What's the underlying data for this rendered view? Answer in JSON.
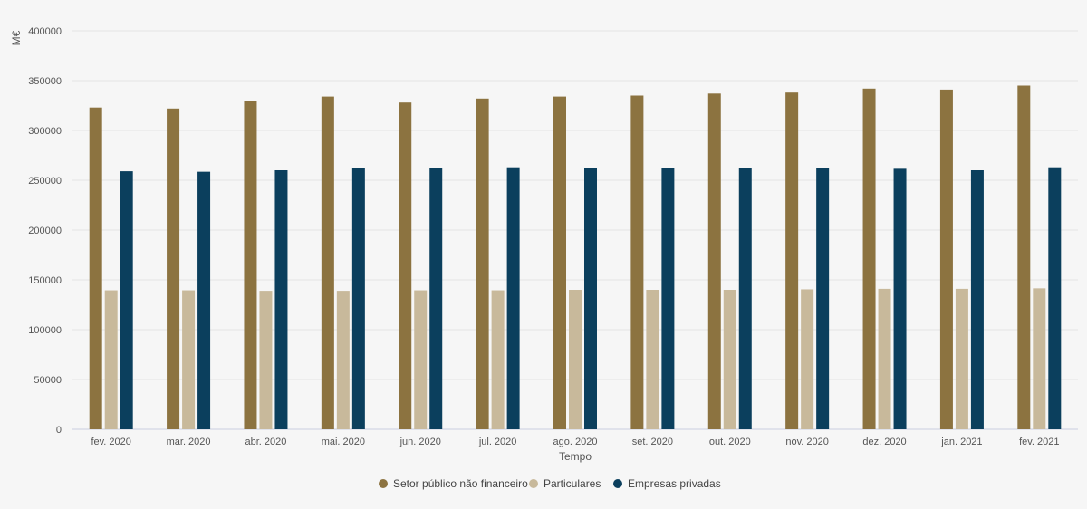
{
  "chart_data": {
    "type": "bar",
    "title": "",
    "xlabel": "Tempo",
    "ylabel": "M€",
    "ylim": [
      0,
      400000
    ],
    "yticks": [
      0,
      50000,
      100000,
      150000,
      200000,
      250000,
      300000,
      350000,
      400000
    ],
    "grid": true,
    "legend_position": "bottom",
    "categories": [
      "fev. 2020",
      "mar. 2020",
      "abr. 2020",
      "mai. 2020",
      "jun. 2020",
      "jul. 2020",
      "ago. 2020",
      "set. 2020",
      "out. 2020",
      "nov. 2020",
      "dez. 2020",
      "jan. 2021",
      "fev. 2021"
    ],
    "series": [
      {
        "name": "Setor público não financeiro",
        "color": "#8c7340",
        "values": [
          323000,
          322000,
          330000,
          334000,
          328000,
          332000,
          334000,
          335000,
          337000,
          338000,
          342000,
          341000,
          345000
        ]
      },
      {
        "name": "Particulares",
        "color": "#c8b99b",
        "values": [
          139500,
          139500,
          139000,
          139000,
          139500,
          139500,
          140000,
          140000,
          140000,
          140500,
          141000,
          141000,
          141500
        ]
      },
      {
        "name": "Empresas privadas",
        "color": "#0b3f5d",
        "values": [
          259000,
          258500,
          260000,
          262000,
          262000,
          263000,
          262000,
          262000,
          262000,
          262000,
          261500,
          260000,
          263000
        ]
      }
    ]
  }
}
